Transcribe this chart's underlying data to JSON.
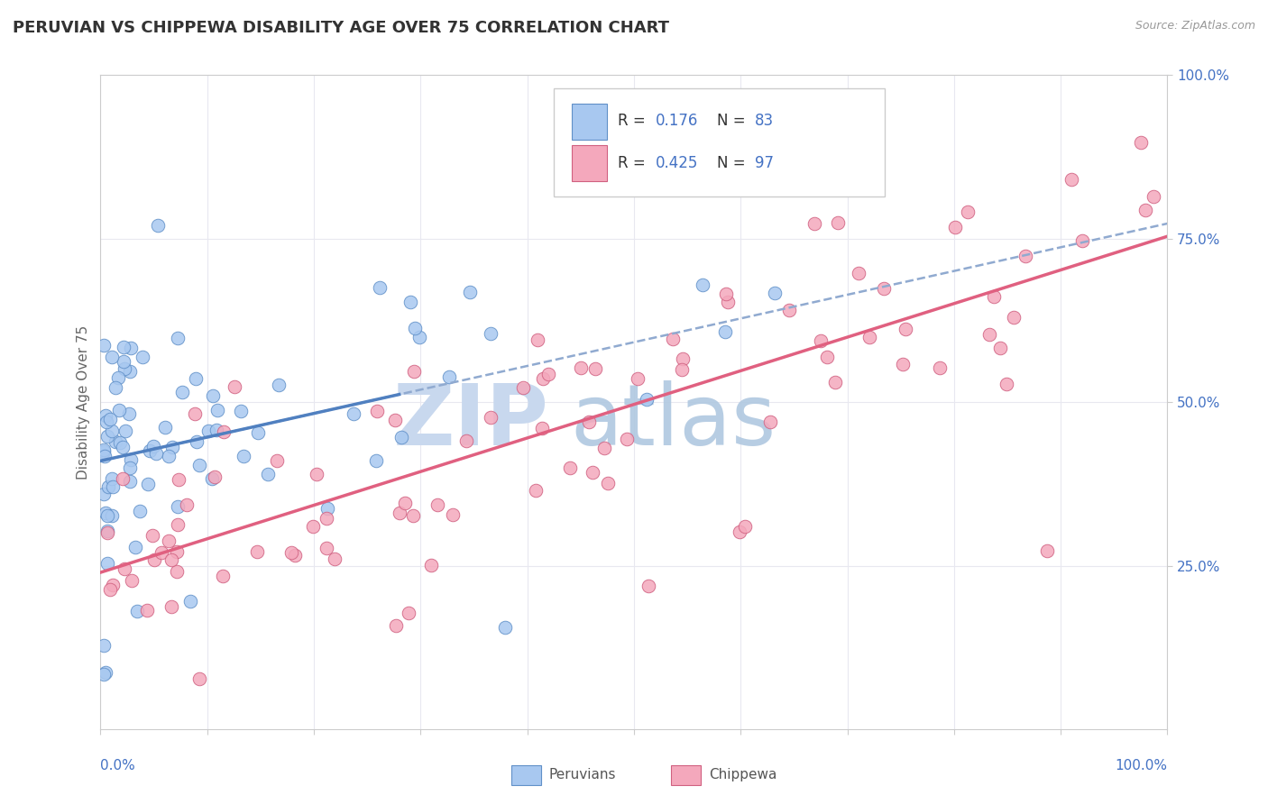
{
  "title": "PERUVIAN VS CHIPPEWA DISABILITY AGE OVER 75 CORRELATION CHART",
  "source_text": "Source: ZipAtlas.com",
  "ylabel": "Disability Age Over 75",
  "xlim": [
    0,
    100
  ],
  "ylim": [
    0,
    100
  ],
  "yticks": [
    25,
    50,
    75,
    100
  ],
  "ytick_labels": [
    "25.0%",
    "50.0%",
    "75.0%",
    "100.0%"
  ],
  "peruvian_color": "#a8c8f0",
  "chippewa_color": "#f4a8bc",
  "peruvian_edge": "#6090c8",
  "chippewa_edge": "#d06080",
  "trend_blue_color": "#5080c0",
  "trend_dashed_color": "#90aad0",
  "trend_chippewa_color": "#e06080",
  "R_peruvian": 0.176,
  "N_peruvian": 83,
  "R_chippewa": 0.425,
  "N_chippewa": 97,
  "tick_color": "#4472c4",
  "ylabel_color": "#666666",
  "watermark_zip_color": "#c8d8ee",
  "watermark_atlas_color": "#b0c8e0",
  "grid_color": "#e8e8f0",
  "legend_text_color_R": "#000000",
  "legend_text_color_N": "#4472c4"
}
